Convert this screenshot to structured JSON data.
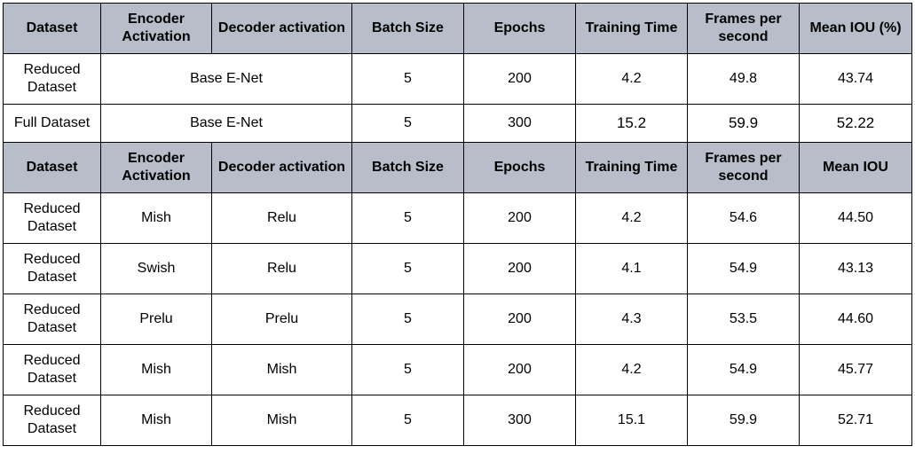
{
  "header_top": {
    "dataset": "Dataset",
    "encoder": "Encoder Activation",
    "decoder": "Decoder activation",
    "batch": "Batch Size",
    "epochs": "Epochs",
    "time": "Training Time",
    "fps": "Frames per second",
    "miou": "Mean IOU (%)"
  },
  "base_rows": [
    {
      "dataset": "Reduced Dataset",
      "model": "Base E-Net",
      "batch": "5",
      "epochs": "200",
      "time": "4.2",
      "fps": "49.8",
      "miou": "43.74"
    },
    {
      "dataset": "Full Dataset",
      "model": "Base E-Net",
      "batch": "5",
      "epochs": "300",
      "time": "15.2",
      "fps": "59.9",
      "miou": "52.22"
    }
  ],
  "header_mid": {
    "dataset": "Dataset",
    "encoder": "Encoder Activation",
    "decoder": "Decoder activation",
    "batch": "Batch Size",
    "epochs": "Epochs",
    "time": "Training Time",
    "fps": "Frames per second",
    "miou": "Mean IOU"
  },
  "rows": [
    {
      "dataset": "Reduced Dataset",
      "encoder": "Mish",
      "decoder": "Relu",
      "batch": "5",
      "epochs": "200",
      "time": "4.2",
      "fps": "54.6",
      "miou": "44.50"
    },
    {
      "dataset": "Reduced Dataset",
      "encoder": "Swish",
      "decoder": "Relu",
      "batch": "5",
      "epochs": "200",
      "time": "4.1",
      "fps": "54.9",
      "miou": "43.13"
    },
    {
      "dataset": "Reduced Dataset",
      "encoder": "Prelu",
      "decoder": "Prelu",
      "batch": "5",
      "epochs": "200",
      "time": "4.3",
      "fps": "53.5",
      "miou": "44.60"
    },
    {
      "dataset": "Reduced Dataset",
      "encoder": "Mish",
      "decoder": "Mish",
      "batch": "5",
      "epochs": "200",
      "time": "4.2",
      "fps": "54.9",
      "miou": "45.77"
    },
    {
      "dataset": "Reduced Dataset",
      "encoder": "Mish",
      "decoder": "Mish",
      "batch": "5",
      "epochs": "300",
      "time": "15.1",
      "fps": "59.9",
      "miou": "52.71"
    }
  ],
  "colors": {
    "header_bg": "#b7bec9",
    "border": "#000000"
  }
}
